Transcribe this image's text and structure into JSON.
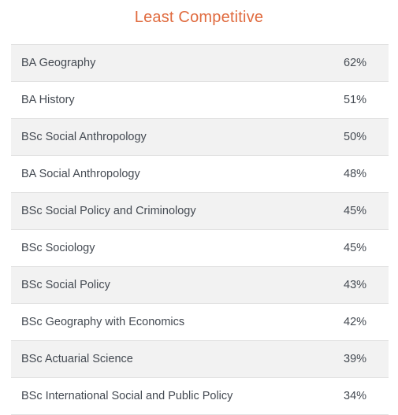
{
  "title": "Least Competitive",
  "rows": [
    {
      "course": "BA Geography",
      "rate": "62%"
    },
    {
      "course": "BA History",
      "rate": "51%"
    },
    {
      "course": "BSc Social Anthropology",
      "rate": "50%"
    },
    {
      "course": "BA Social Anthropology",
      "rate": "48%"
    },
    {
      "course": "BSc Social Policy and Criminology",
      "rate": "45%"
    },
    {
      "course": "BSc Sociology",
      "rate": "45%"
    },
    {
      "course": "BSc Social Policy",
      "rate": "43%"
    },
    {
      "course": "BSc Geography with Economics",
      "rate": "42%"
    },
    {
      "course": "BSc Actuarial Science",
      "rate": "39%"
    },
    {
      "course": "BSc International Social and Public Policy",
      "rate": "34%"
    }
  ]
}
